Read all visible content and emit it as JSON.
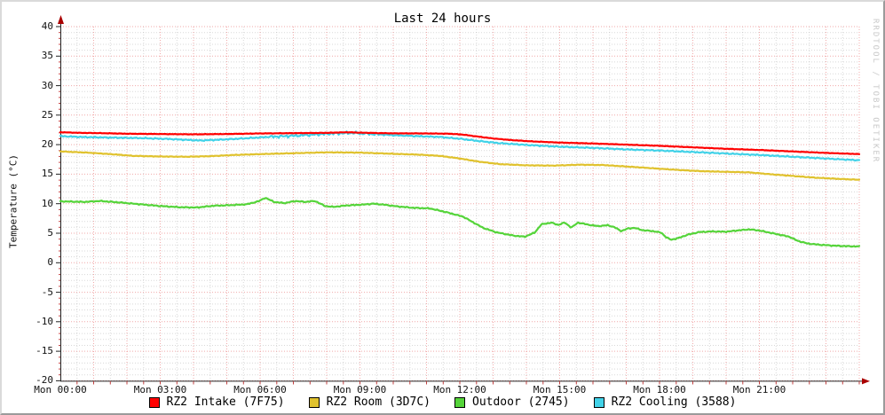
{
  "title": "Last 24 hours",
  "watermark": "RRDTOOL / TOBI OETIKER",
  "chart_data": {
    "type": "line",
    "title": "Last 24 hours",
    "ylabel": "Temperature (°C)",
    "ylim": [
      -20,
      40
    ],
    "xlim_hours": [
      0,
      24
    ],
    "grid": {
      "major_color": "#e87070",
      "minor_color": "#999999",
      "axis_color": "#222222",
      "arrow_color": "#aa0000"
    },
    "y_tick_values": [
      40,
      35,
      30,
      25,
      20,
      15,
      10,
      5,
      0,
      -5,
      -10,
      -15,
      -20
    ],
    "x_ticks": [
      {
        "hour": 0,
        "label": "Mon 00:00"
      },
      {
        "hour": 3,
        "label": "Mon 03:00"
      },
      {
        "hour": 6,
        "label": "Mon 06:00"
      },
      {
        "hour": 9,
        "label": "Mon 09:00"
      },
      {
        "hour": 12,
        "label": "Mon 12:00"
      },
      {
        "hour": 15,
        "label": "Mon 15:00"
      },
      {
        "hour": 18,
        "label": "Mon 18:00"
      },
      {
        "hour": 21,
        "label": "Mon 21:00"
      }
    ],
    "series": [
      {
        "name": "RZ2 Intake (7F75)",
        "color": "#ff0000",
        "z": 4,
        "noise": 0.05,
        "points": [
          [
            0,
            22.1
          ],
          [
            0.6,
            22.0
          ],
          [
            1.2,
            21.95
          ],
          [
            2,
            21.85
          ],
          [
            3,
            21.8
          ],
          [
            4,
            21.75
          ],
          [
            5,
            21.8
          ],
          [
            6,
            21.9
          ],
          [
            7,
            21.95
          ],
          [
            8,
            22.0
          ],
          [
            8.6,
            22.1
          ],
          [
            9.2,
            22.0
          ],
          [
            10,
            21.92
          ],
          [
            11,
            21.9
          ],
          [
            11.7,
            21.85
          ],
          [
            12.1,
            21.7
          ],
          [
            12.5,
            21.4
          ],
          [
            13,
            21.05
          ],
          [
            13.6,
            20.75
          ],
          [
            14.2,
            20.55
          ],
          [
            15,
            20.35
          ],
          [
            16,
            20.2
          ],
          [
            17,
            20.0
          ],
          [
            18,
            19.8
          ],
          [
            19,
            19.55
          ],
          [
            20,
            19.3
          ],
          [
            21,
            19.1
          ],
          [
            22,
            18.85
          ],
          [
            23,
            18.6
          ],
          [
            24,
            18.4
          ]
        ]
      },
      {
        "name": "RZ2 Room (3D7C)",
        "color": "#e0c22e",
        "z": 2,
        "noise": 0.07,
        "points": [
          [
            0,
            18.85
          ],
          [
            0.8,
            18.65
          ],
          [
            1.5,
            18.4
          ],
          [
            2.2,
            18.1
          ],
          [
            3,
            18.0
          ],
          [
            3.8,
            17.95
          ],
          [
            4.5,
            18.05
          ],
          [
            5.2,
            18.25
          ],
          [
            6,
            18.4
          ],
          [
            7,
            18.55
          ],
          [
            8,
            18.7
          ],
          [
            9,
            18.65
          ],
          [
            10,
            18.45
          ],
          [
            10.8,
            18.3
          ],
          [
            11.4,
            18.1
          ],
          [
            12,
            17.65
          ],
          [
            12.6,
            17.1
          ],
          [
            13.2,
            16.7
          ],
          [
            14,
            16.5
          ],
          [
            14.8,
            16.45
          ],
          [
            15.6,
            16.6
          ],
          [
            16.3,
            16.55
          ],
          [
            17,
            16.3
          ],
          [
            17.8,
            16.0
          ],
          [
            18.6,
            15.7
          ],
          [
            19.3,
            15.5
          ],
          [
            20,
            15.4
          ],
          [
            20.7,
            15.3
          ],
          [
            21.3,
            15.0
          ],
          [
            22,
            14.7
          ],
          [
            22.7,
            14.4
          ],
          [
            23.4,
            14.2
          ],
          [
            24,
            14.05
          ]
        ]
      },
      {
        "name": "Outdoor (2745)",
        "color": "#55d43a",
        "z": 1,
        "noise": 0.11,
        "points": [
          [
            0,
            10.4
          ],
          [
            0.7,
            10.3
          ],
          [
            1.2,
            10.45
          ],
          [
            1.8,
            10.2
          ],
          [
            2.4,
            9.9
          ],
          [
            3,
            9.6
          ],
          [
            3.6,
            9.4
          ],
          [
            4.1,
            9.35
          ],
          [
            4.6,
            9.65
          ],
          [
            5.1,
            9.75
          ],
          [
            5.6,
            9.9
          ],
          [
            5.95,
            10.4
          ],
          [
            6.15,
            11.0
          ],
          [
            6.45,
            10.25
          ],
          [
            6.75,
            10.1
          ],
          [
            7.05,
            10.45
          ],
          [
            7.35,
            10.3
          ],
          [
            7.65,
            10.45
          ],
          [
            7.95,
            9.6
          ],
          [
            8.2,
            9.45
          ],
          [
            8.6,
            9.7
          ],
          [
            9.1,
            9.85
          ],
          [
            9.4,
            10.0
          ],
          [
            9.7,
            9.85
          ],
          [
            10.1,
            9.55
          ],
          [
            10.6,
            9.3
          ],
          [
            11.1,
            9.2
          ],
          [
            11.6,
            8.55
          ],
          [
            12.1,
            7.8
          ],
          [
            12.35,
            7.0
          ],
          [
            12.7,
            5.9
          ],
          [
            13.1,
            5.15
          ],
          [
            13.6,
            4.6
          ],
          [
            13.95,
            4.4
          ],
          [
            14.25,
            5.1
          ],
          [
            14.45,
            6.5
          ],
          [
            14.75,
            6.8
          ],
          [
            14.95,
            6.4
          ],
          [
            15.15,
            6.8
          ],
          [
            15.35,
            5.95
          ],
          [
            15.55,
            6.8
          ],
          [
            15.85,
            6.45
          ],
          [
            16.15,
            6.2
          ],
          [
            16.45,
            6.35
          ],
          [
            16.65,
            6.0
          ],
          [
            16.85,
            5.35
          ],
          [
            17.05,
            5.8
          ],
          [
            17.25,
            5.9
          ],
          [
            17.5,
            5.5
          ],
          [
            17.8,
            5.35
          ],
          [
            18.05,
            5.1
          ],
          [
            18.2,
            4.3
          ],
          [
            18.35,
            3.9
          ],
          [
            18.55,
            4.15
          ],
          [
            18.85,
            4.75
          ],
          [
            19.2,
            5.2
          ],
          [
            19.6,
            5.3
          ],
          [
            20,
            5.25
          ],
          [
            20.4,
            5.5
          ],
          [
            20.7,
            5.65
          ],
          [
            21,
            5.45
          ],
          [
            21.3,
            5.1
          ],
          [
            21.6,
            4.75
          ],
          [
            21.9,
            4.4
          ],
          [
            22.15,
            3.7
          ],
          [
            22.45,
            3.25
          ],
          [
            22.8,
            3.05
          ],
          [
            23.2,
            2.9
          ],
          [
            23.6,
            2.8
          ],
          [
            24,
            2.75
          ]
        ]
      },
      {
        "name": "RZ2 Cooling (3588)",
        "color": "#42d2e8",
        "z": 3,
        "noise": 0.13,
        "noise_boost": {
          "from": 6.3,
          "to": 9.7,
          "amp": 0.3
        },
        "points": [
          [
            0,
            21.45
          ],
          [
            0.6,
            21.3
          ],
          [
            1.5,
            21.2
          ],
          [
            2.5,
            21.1
          ],
          [
            3.3,
            20.95
          ],
          [
            4.2,
            20.7
          ],
          [
            4.8,
            20.85
          ],
          [
            5.5,
            21.05
          ],
          [
            6.2,
            21.3
          ],
          [
            7,
            21.5
          ],
          [
            7.6,
            21.7
          ],
          [
            8.2,
            21.9
          ],
          [
            8.8,
            22.0
          ],
          [
            9.4,
            21.8
          ],
          [
            10,
            21.6
          ],
          [
            10.7,
            21.45
          ],
          [
            11.4,
            21.3
          ],
          [
            12,
            21.0
          ],
          [
            12.6,
            20.6
          ],
          [
            13.2,
            20.25
          ],
          [
            14,
            19.95
          ],
          [
            15,
            19.65
          ],
          [
            16,
            19.45
          ],
          [
            17,
            19.2
          ],
          [
            18,
            19.0
          ],
          [
            19,
            18.75
          ],
          [
            20,
            18.5
          ],
          [
            21,
            18.25
          ],
          [
            22,
            17.95
          ],
          [
            23,
            17.65
          ],
          [
            24,
            17.35
          ]
        ]
      }
    ],
    "legend_position": "bottom"
  },
  "legend": {
    "items": [
      {
        "label": "RZ2 Intake (7F75)",
        "color": "#ff0000"
      },
      {
        "label": "RZ2 Room (3D7C)",
        "color": "#e0c22e"
      },
      {
        "label": "Outdoor (2745)",
        "color": "#55d43a"
      },
      {
        "label": "RZ2 Cooling (3588)",
        "color": "#42d2e8"
      }
    ]
  }
}
